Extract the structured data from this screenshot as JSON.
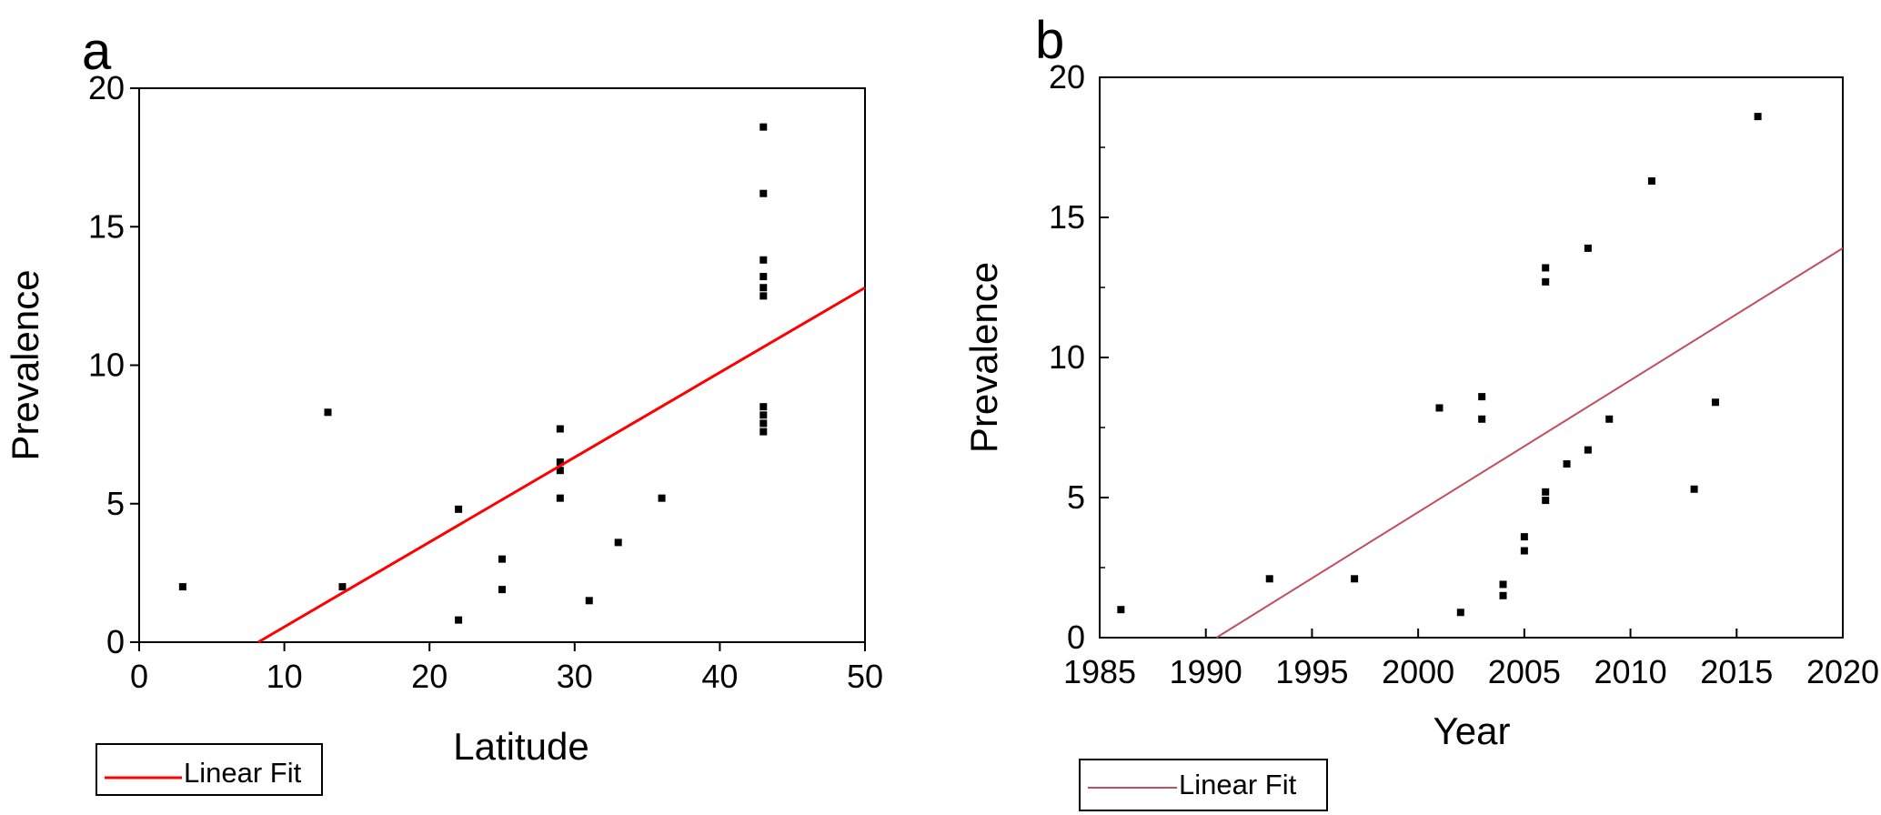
{
  "chart_data": [
    {
      "type": "scatter",
      "panel": "a",
      "xlabel": "Latitude",
      "ylabel": "Prevalence",
      "xlim": [
        0,
        50
      ],
      "ylim": [
        0,
        20
      ],
      "xticks": [
        "0",
        "10",
        "20",
        "30",
        "40",
        "50"
      ],
      "yticks": [
        "0",
        "5",
        "10",
        "15",
        "20"
      ],
      "grid": false,
      "legend": {
        "label": "Linear Fit",
        "placement": "bottom-left",
        "color": "#ff0000"
      },
      "series": [
        {
          "kind": "points",
          "x": [
            3,
            13,
            14,
            22,
            22,
            25,
            25,
            29,
            29,
            29,
            29,
            31,
            33,
            36,
            43,
            43,
            43,
            43,
            43,
            43,
            43,
            43,
            43,
            43
          ],
          "y": [
            2.0,
            8.3,
            2.0,
            0.8,
            4.8,
            3.0,
            1.9,
            7.7,
            6.5,
            6.2,
            5.2,
            1.5,
            3.6,
            5.2,
            18.6,
            16.2,
            13.8,
            13.2,
            12.8,
            12.5,
            8.5,
            8.2,
            7.9,
            7.6
          ]
        },
        {
          "name": "Linear Fit",
          "kind": "line",
          "x": [
            8.2,
            50
          ],
          "y": [
            0,
            12.8
          ]
        }
      ]
    },
    {
      "type": "scatter",
      "panel": "b",
      "xlabel": "Year",
      "ylabel": "Prevalence",
      "xlim": [
        1985,
        2020
      ],
      "ylim": [
        0,
        20
      ],
      "xticks": [
        "1985",
        "1990",
        "1995",
        "2000",
        "2005",
        "2010",
        "2015",
        "2020"
      ],
      "yticks": [
        "0",
        "5",
        "10",
        "15",
        "20"
      ],
      "grid": false,
      "legend": {
        "label": "Linear Fit",
        "placement": "bottom-left",
        "color": "#c05060"
      },
      "series": [
        {
          "kind": "points",
          "x": [
            1986,
            1993,
            1997,
            2001,
            2002,
            2003,
            2003,
            2004,
            2004,
            2005,
            2005,
            2006,
            2006,
            2006,
            2006,
            2007,
            2008,
            2008,
            2009,
            2011,
            2013,
            2014,
            2016
          ],
          "y": [
            1.0,
            2.1,
            2.1,
            8.2,
            0.9,
            8.6,
            7.8,
            1.9,
            1.5,
            3.6,
            3.1,
            13.2,
            12.7,
            5.2,
            4.9,
            6.2,
            13.9,
            6.7,
            7.8,
            16.3,
            5.3,
            8.4,
            18.6
          ]
        },
        {
          "name": "Linear Fit",
          "kind": "line",
          "x": [
            1990.5,
            2020
          ],
          "y": [
            0,
            13.9
          ]
        }
      ]
    }
  ]
}
